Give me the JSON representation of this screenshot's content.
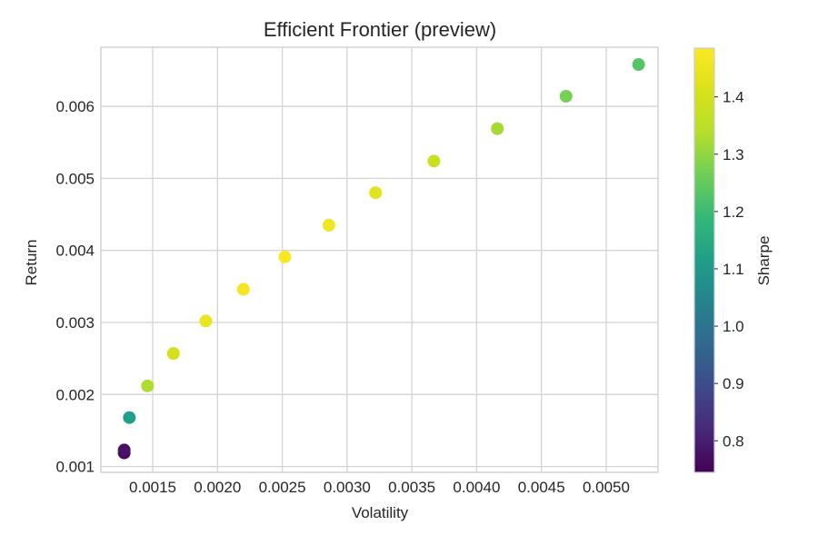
{
  "chart_data": {
    "type": "scatter",
    "title": "Efficient Frontier (preview)",
    "xlabel": "Volatility",
    "ylabel": "Return",
    "xlim": [
      0.0011,
      0.0054
    ],
    "ylim": [
      0.00092,
      0.00682
    ],
    "xticks": [
      0.0015,
      0.002,
      0.0025,
      0.003,
      0.0035,
      0.004,
      0.0045,
      0.005
    ],
    "xtick_labels": [
      "0.0015",
      "0.0020",
      "0.0025",
      "0.0030",
      "0.0035",
      "0.0040",
      "0.0045",
      "0.0050"
    ],
    "yticks": [
      0.001,
      0.002,
      0.003,
      0.004,
      0.005,
      0.006
    ],
    "ytick_labels": [
      "0.001",
      "0.002",
      "0.003",
      "0.004",
      "0.005",
      "0.006"
    ],
    "grid": true,
    "colormap": "viridis",
    "colorbar": {
      "label": "Sharpe",
      "range": [
        0.745,
        1.485
      ],
      "ticks": [
        0.8,
        0.9,
        1.0,
        1.1,
        1.2,
        1.3,
        1.4
      ],
      "tick_labels": [
        "0.8",
        "0.9",
        "1.0",
        "1.1",
        "1.2",
        "1.3",
        "1.4"
      ]
    },
    "points": [
      {
        "x": 0.00128,
        "y": 0.00119,
        "sharpe": 0.76
      },
      {
        "x": 0.00128,
        "y": 0.00123,
        "sharpe": 0.78
      },
      {
        "x": 0.00132,
        "y": 0.00168,
        "sharpe": 1.12
      },
      {
        "x": 0.00146,
        "y": 0.00212,
        "sharpe": 1.33
      },
      {
        "x": 0.00166,
        "y": 0.00257,
        "sharpe": 1.4
      },
      {
        "x": 0.00191,
        "y": 0.00302,
        "sharpe": 1.45
      },
      {
        "x": 0.0022,
        "y": 0.00346,
        "sharpe": 1.47
      },
      {
        "x": 0.00252,
        "y": 0.00391,
        "sharpe": 1.48
      },
      {
        "x": 0.00286,
        "y": 0.00435,
        "sharpe": 1.46
      },
      {
        "x": 0.00322,
        "y": 0.0048,
        "sharpe": 1.43
      },
      {
        "x": 0.00367,
        "y": 0.00524,
        "sharpe": 1.38
      },
      {
        "x": 0.00416,
        "y": 0.00569,
        "sharpe": 1.32
      },
      {
        "x": 0.00469,
        "y": 0.00614,
        "sharpe": 1.27
      },
      {
        "x": 0.00525,
        "y": 0.00658,
        "sharpe": 1.23
      }
    ]
  }
}
